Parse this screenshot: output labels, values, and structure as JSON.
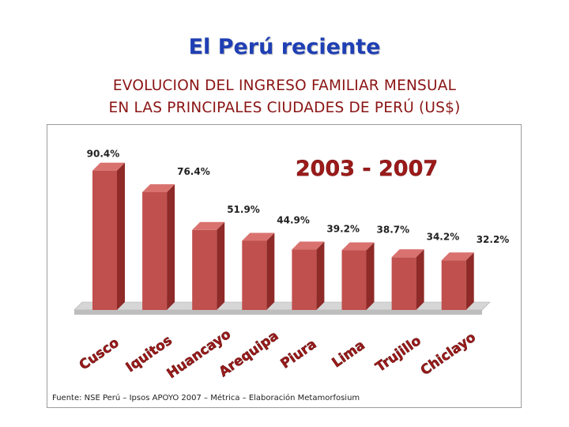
{
  "header": {
    "title": "El Perú reciente",
    "subtitle_line1": "EVOLUCION DEL INGRESO FAMILIAR MENSUAL",
    "subtitle_line2": "EN LAS PRINCIPALES CIUDADES DE PERÚ (US$)"
  },
  "chart_data": {
    "type": "bar",
    "title": "2003 - 2007",
    "categories": [
      "Cusco",
      "Iquitos",
      "Huancayo",
      "Arequipa",
      "Piura",
      "Lima",
      "Trujillo",
      "Chiclayo"
    ],
    "values": [
      90.4,
      76.4,
      51.9,
      44.9,
      39.2,
      38.7,
      34.2,
      32.2
    ],
    "data_labels": [
      "90.4%",
      "76.4%",
      "51.9%",
      "44.9%",
      "39.2%",
      "38.7%",
      "34.2%",
      "32.2%"
    ],
    "value_unit": "%",
    "xlabel": "",
    "ylabel": "",
    "grid": false,
    "legend": "none",
    "bar_color": "#c0504d",
    "bar_side_color": "#8e2a28",
    "bar_top_color": "#d9726f"
  },
  "source": "Fuente: NSE Perú – Ipsos APOYO 2007 – Métrica – Elaboración Metamorfosium"
}
